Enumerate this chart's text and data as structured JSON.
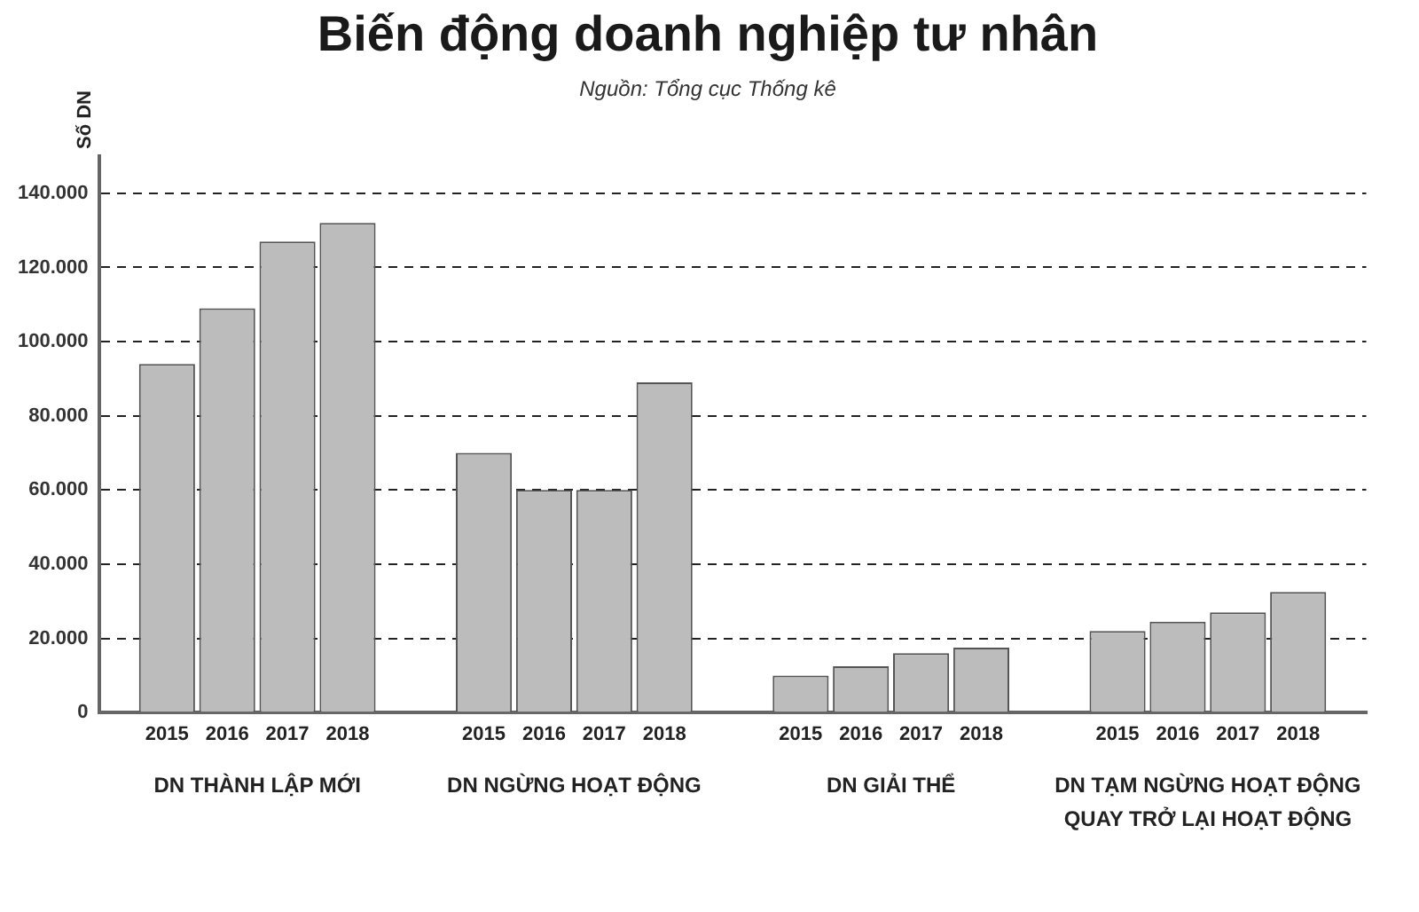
{
  "chart_data": {
    "type": "bar",
    "title": "Biến động doanh nghiệp tư nhân",
    "subtitle": "Nguồn: Tổng cục Thống kê",
    "ylabel": "Số DN",
    "categories": [
      "DN THÀNH LẬP MỚI",
      "DN NGỪNG HOẠT ĐỘNG",
      "DN GIẢI THỂ",
      "DN TẠM NGỪNG HOẠT ĐỘNG QUAY TRỞ LẠI HOẠT ĐỘNG"
    ],
    "series": [
      {
        "name": "2015",
        "color": "#bcbcbc",
        "values": [
          94000,
          70000,
          10000,
          22000
        ]
      },
      {
        "name": "2016",
        "color": "#bcbcbc",
        "values": [
          109000,
          60000,
          12500,
          24500
        ]
      },
      {
        "name": "2017",
        "color": "#bcbcbc",
        "values": [
          127000,
          60000,
          16000,
          27000
        ]
      },
      {
        "name": "2018",
        "color": "#bcbcbc",
        "values": [
          132000,
          89000,
          17500,
          32500
        ]
      }
    ],
    "ylim": [
      0,
      150000
    ],
    "yticks": [
      0,
      {
        "value": 20000,
        "label": "20.000"
      },
      {
        "value": 40000,
        "label": "40.000"
      },
      {
        "value": 60000,
        "label": "60.000"
      },
      {
        "value": 80000,
        "label": "80.000"
      },
      {
        "value": 100000,
        "label": "100.000"
      },
      {
        "value": 120000,
        "label": "120.000"
      },
      {
        "value": 140000,
        "label": "140.000"
      }
    ],
    "grid": "y",
    "legend": false
  }
}
